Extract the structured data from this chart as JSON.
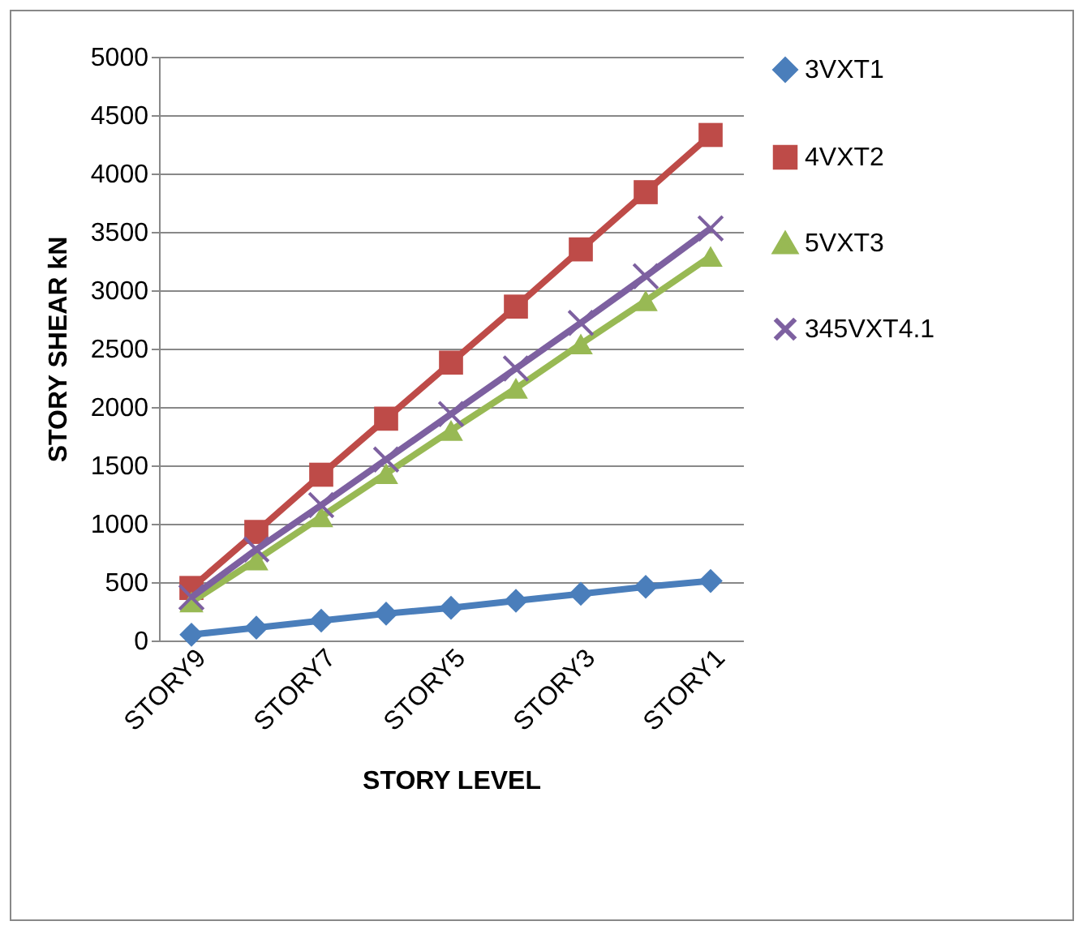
{
  "chart_data": {
    "type": "line",
    "xlabel": "STORY LEVEL",
    "ylabel": "STORY SHEAR kN",
    "categories": [
      "STORY9",
      null,
      "STORY7",
      null,
      "STORY5",
      null,
      "STORY3",
      null,
      "STORY1"
    ],
    "series": [
      {
        "name": "3VXT1",
        "color": "#4a7ebb",
        "marker": "diamond",
        "values": [
          50,
          110,
          170,
          230,
          280,
          340,
          400,
          460,
          510
        ]
      },
      {
        "name": "4VXT2",
        "color": "#be4b48",
        "marker": "square",
        "values": [
          450,
          930,
          1420,
          1900,
          2380,
          2860,
          3350,
          3840,
          4330
        ]
      },
      {
        "name": "5VXT3",
        "color": "#98b954",
        "marker": "triangle",
        "values": [
          330,
          690,
          1060,
          1430,
          1800,
          2160,
          2540,
          2910,
          3290
        ]
      },
      {
        "name": "345VXT4.1",
        "color": "#7d60a0",
        "marker": "cross",
        "values": [
          370,
          780,
          1160,
          1550,
          1940,
          2330,
          2720,
          3120,
          3530
        ]
      }
    ],
    "ylim": [
      0,
      5000
    ],
    "yticks": [
      0,
      500,
      1000,
      1500,
      2000,
      2500,
      3000,
      3500,
      4000,
      4500,
      5000
    ],
    "grid": "y",
    "legend": "right",
    "line_style": "solid"
  }
}
